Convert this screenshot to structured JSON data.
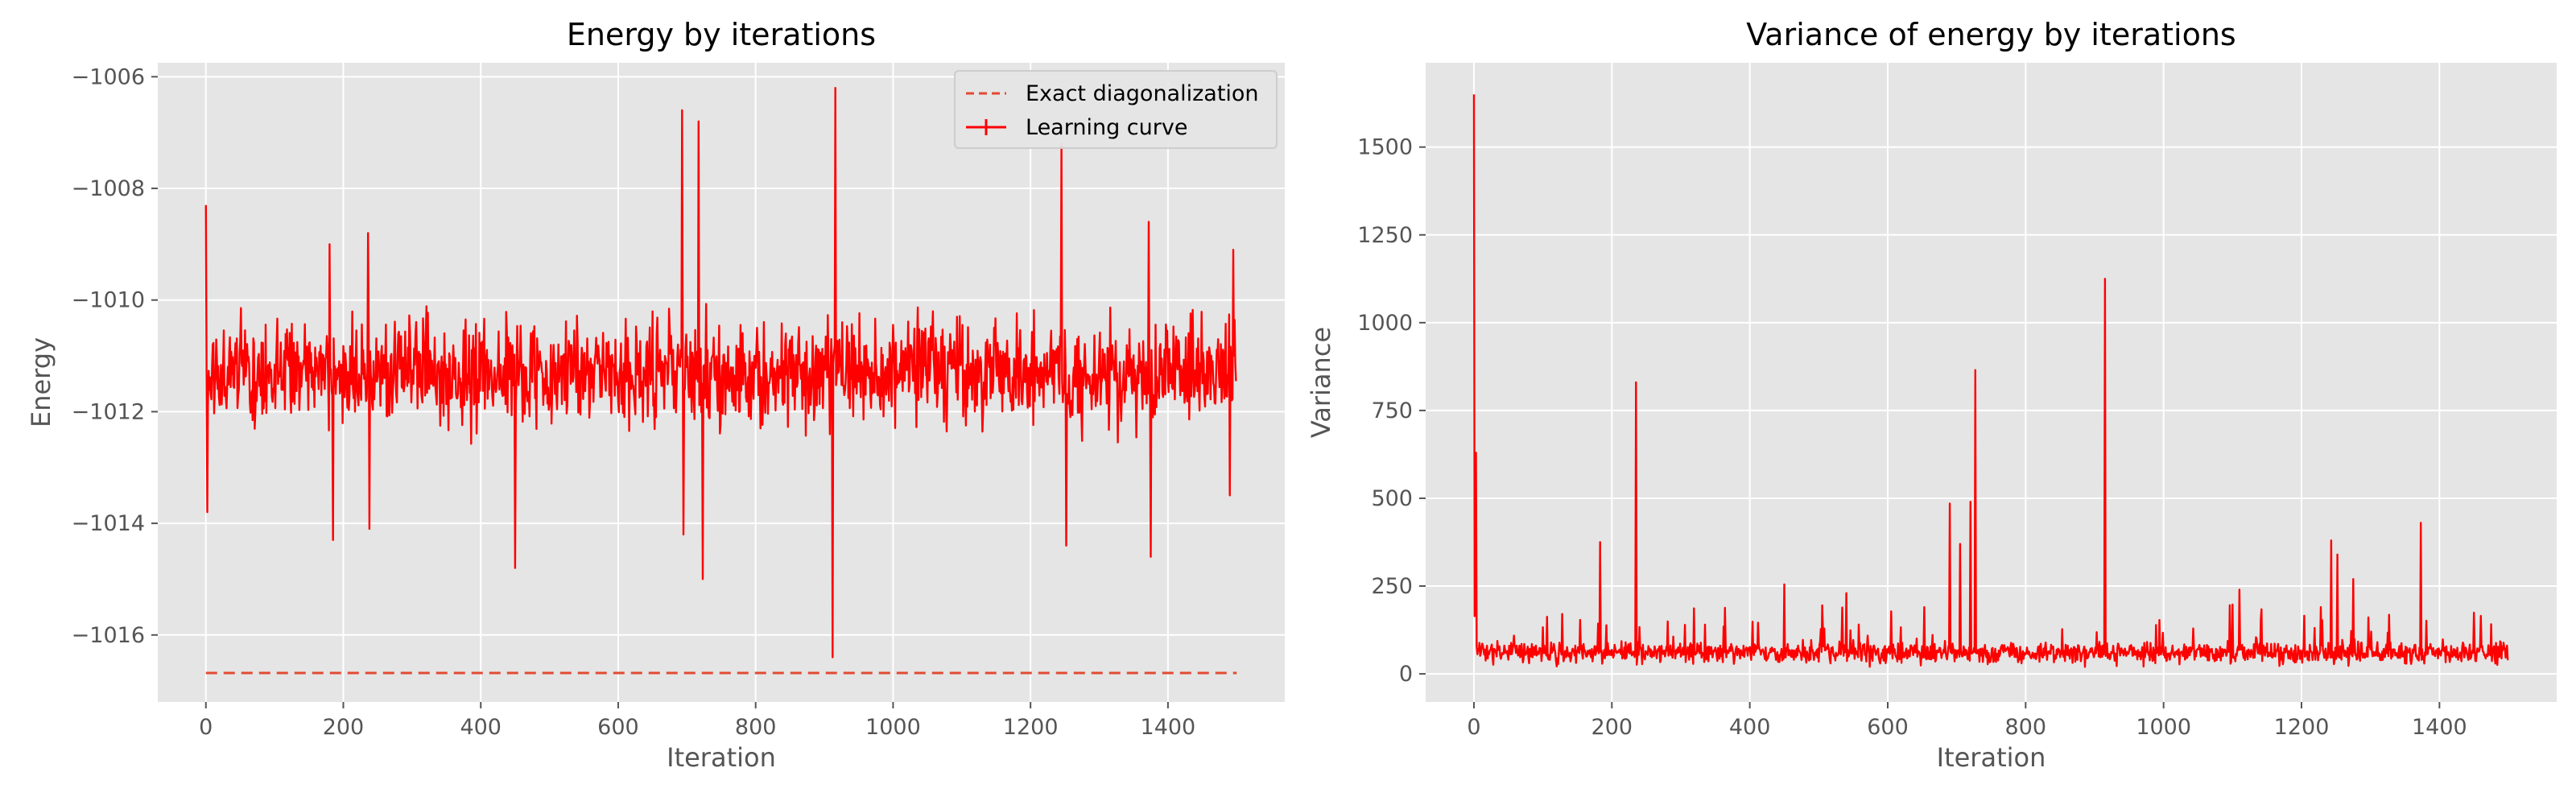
{
  "chart_data": [
    {
      "type": "line",
      "title": "Energy by iterations",
      "xlabel": "Iteration",
      "ylabel": "Energy",
      "xlim": [
        -70,
        1570
      ],
      "ylim": [
        -1017.2,
        -1005.75
      ],
      "xticks": [
        0,
        200,
        400,
        600,
        800,
        1000,
        1200,
        1400
      ],
      "yticks": [
        -1016,
        -1014,
        -1012,
        -1010,
        -1008,
        -1006
      ],
      "grid": true,
      "legend_position": "top-right",
      "colors": {
        "series": "#ff0000",
        "exact": "#e24a33",
        "background": "#e5e5e5",
        "grid": "#ffffff"
      },
      "series": [
        {
          "name": "Exact diagonalization",
          "style": "dashed",
          "x": [
            0,
            1500
          ],
          "y": [
            -1016.68,
            -1016.68
          ]
        },
        {
          "name": "Learning curve",
          "style": "solid-errorbar",
          "mean": -1011.3,
          "spread": 0.85,
          "x_range": [
            0,
            1499
          ],
          "spikes": [
            {
              "x": 0,
              "y": -1008.3
            },
            {
              "x": 2,
              "y": -1013.8
            },
            {
              "x": 180,
              "y": -1009.0
            },
            {
              "x": 185,
              "y": -1014.3
            },
            {
              "x": 236,
              "y": -1008.8
            },
            {
              "x": 238,
              "y": -1014.1
            },
            {
              "x": 450,
              "y": -1014.8
            },
            {
              "x": 693,
              "y": -1006.6
            },
            {
              "x": 695,
              "y": -1014.2
            },
            {
              "x": 717,
              "y": -1006.8
            },
            {
              "x": 723,
              "y": -1015.0
            },
            {
              "x": 912,
              "y": -1016.4
            },
            {
              "x": 916,
              "y": -1006.2
            },
            {
              "x": 1245,
              "y": -1007.2
            },
            {
              "x": 1252,
              "y": -1014.4
            },
            {
              "x": 1372,
              "y": -1008.6
            },
            {
              "x": 1375,
              "y": -1014.6
            },
            {
              "x": 1490,
              "y": -1013.5
            },
            {
              "x": 1495,
              "y": -1009.1
            }
          ]
        }
      ]
    },
    {
      "type": "line",
      "title": "Variance of energy by iterations",
      "xlabel": "Iteration",
      "ylabel": "Variance",
      "xlim": [
        -70,
        1570
      ],
      "ylim": [
        -80,
        1740
      ],
      "xticks": [
        0,
        200,
        400,
        600,
        800,
        1000,
        1200,
        1400
      ],
      "yticks": [
        0,
        250,
        500,
        750,
        1000,
        1250,
        1500
      ],
      "grid": true,
      "colors": {
        "series": "#ff0000",
        "background": "#e5e5e5",
        "grid": "#ffffff"
      },
      "series": [
        {
          "style": "solid",
          "baseline_mean": 60,
          "baseline_spread": 28,
          "x_range": [
            0,
            1499
          ],
          "spikes": [
            {
              "x": 0,
              "y": 1650
            },
            {
              "x": 2,
              "y": 230
            },
            {
              "x": 3,
              "y": 630
            },
            {
              "x": 183,
              "y": 375
            },
            {
              "x": 235,
              "y": 830
            },
            {
              "x": 450,
              "y": 255
            },
            {
              "x": 505,
              "y": 195
            },
            {
              "x": 540,
              "y": 230
            },
            {
              "x": 690,
              "y": 485
            },
            {
              "x": 705,
              "y": 370
            },
            {
              "x": 720,
              "y": 490
            },
            {
              "x": 727,
              "y": 865
            },
            {
              "x": 915,
              "y": 1125
            },
            {
              "x": 1110,
              "y": 240
            },
            {
              "x": 1243,
              "y": 380
            },
            {
              "x": 1252,
              "y": 340
            },
            {
              "x": 1275,
              "y": 270
            },
            {
              "x": 1373,
              "y": 430
            },
            {
              "x": 1460,
              "y": 165
            }
          ]
        }
      ]
    }
  ]
}
